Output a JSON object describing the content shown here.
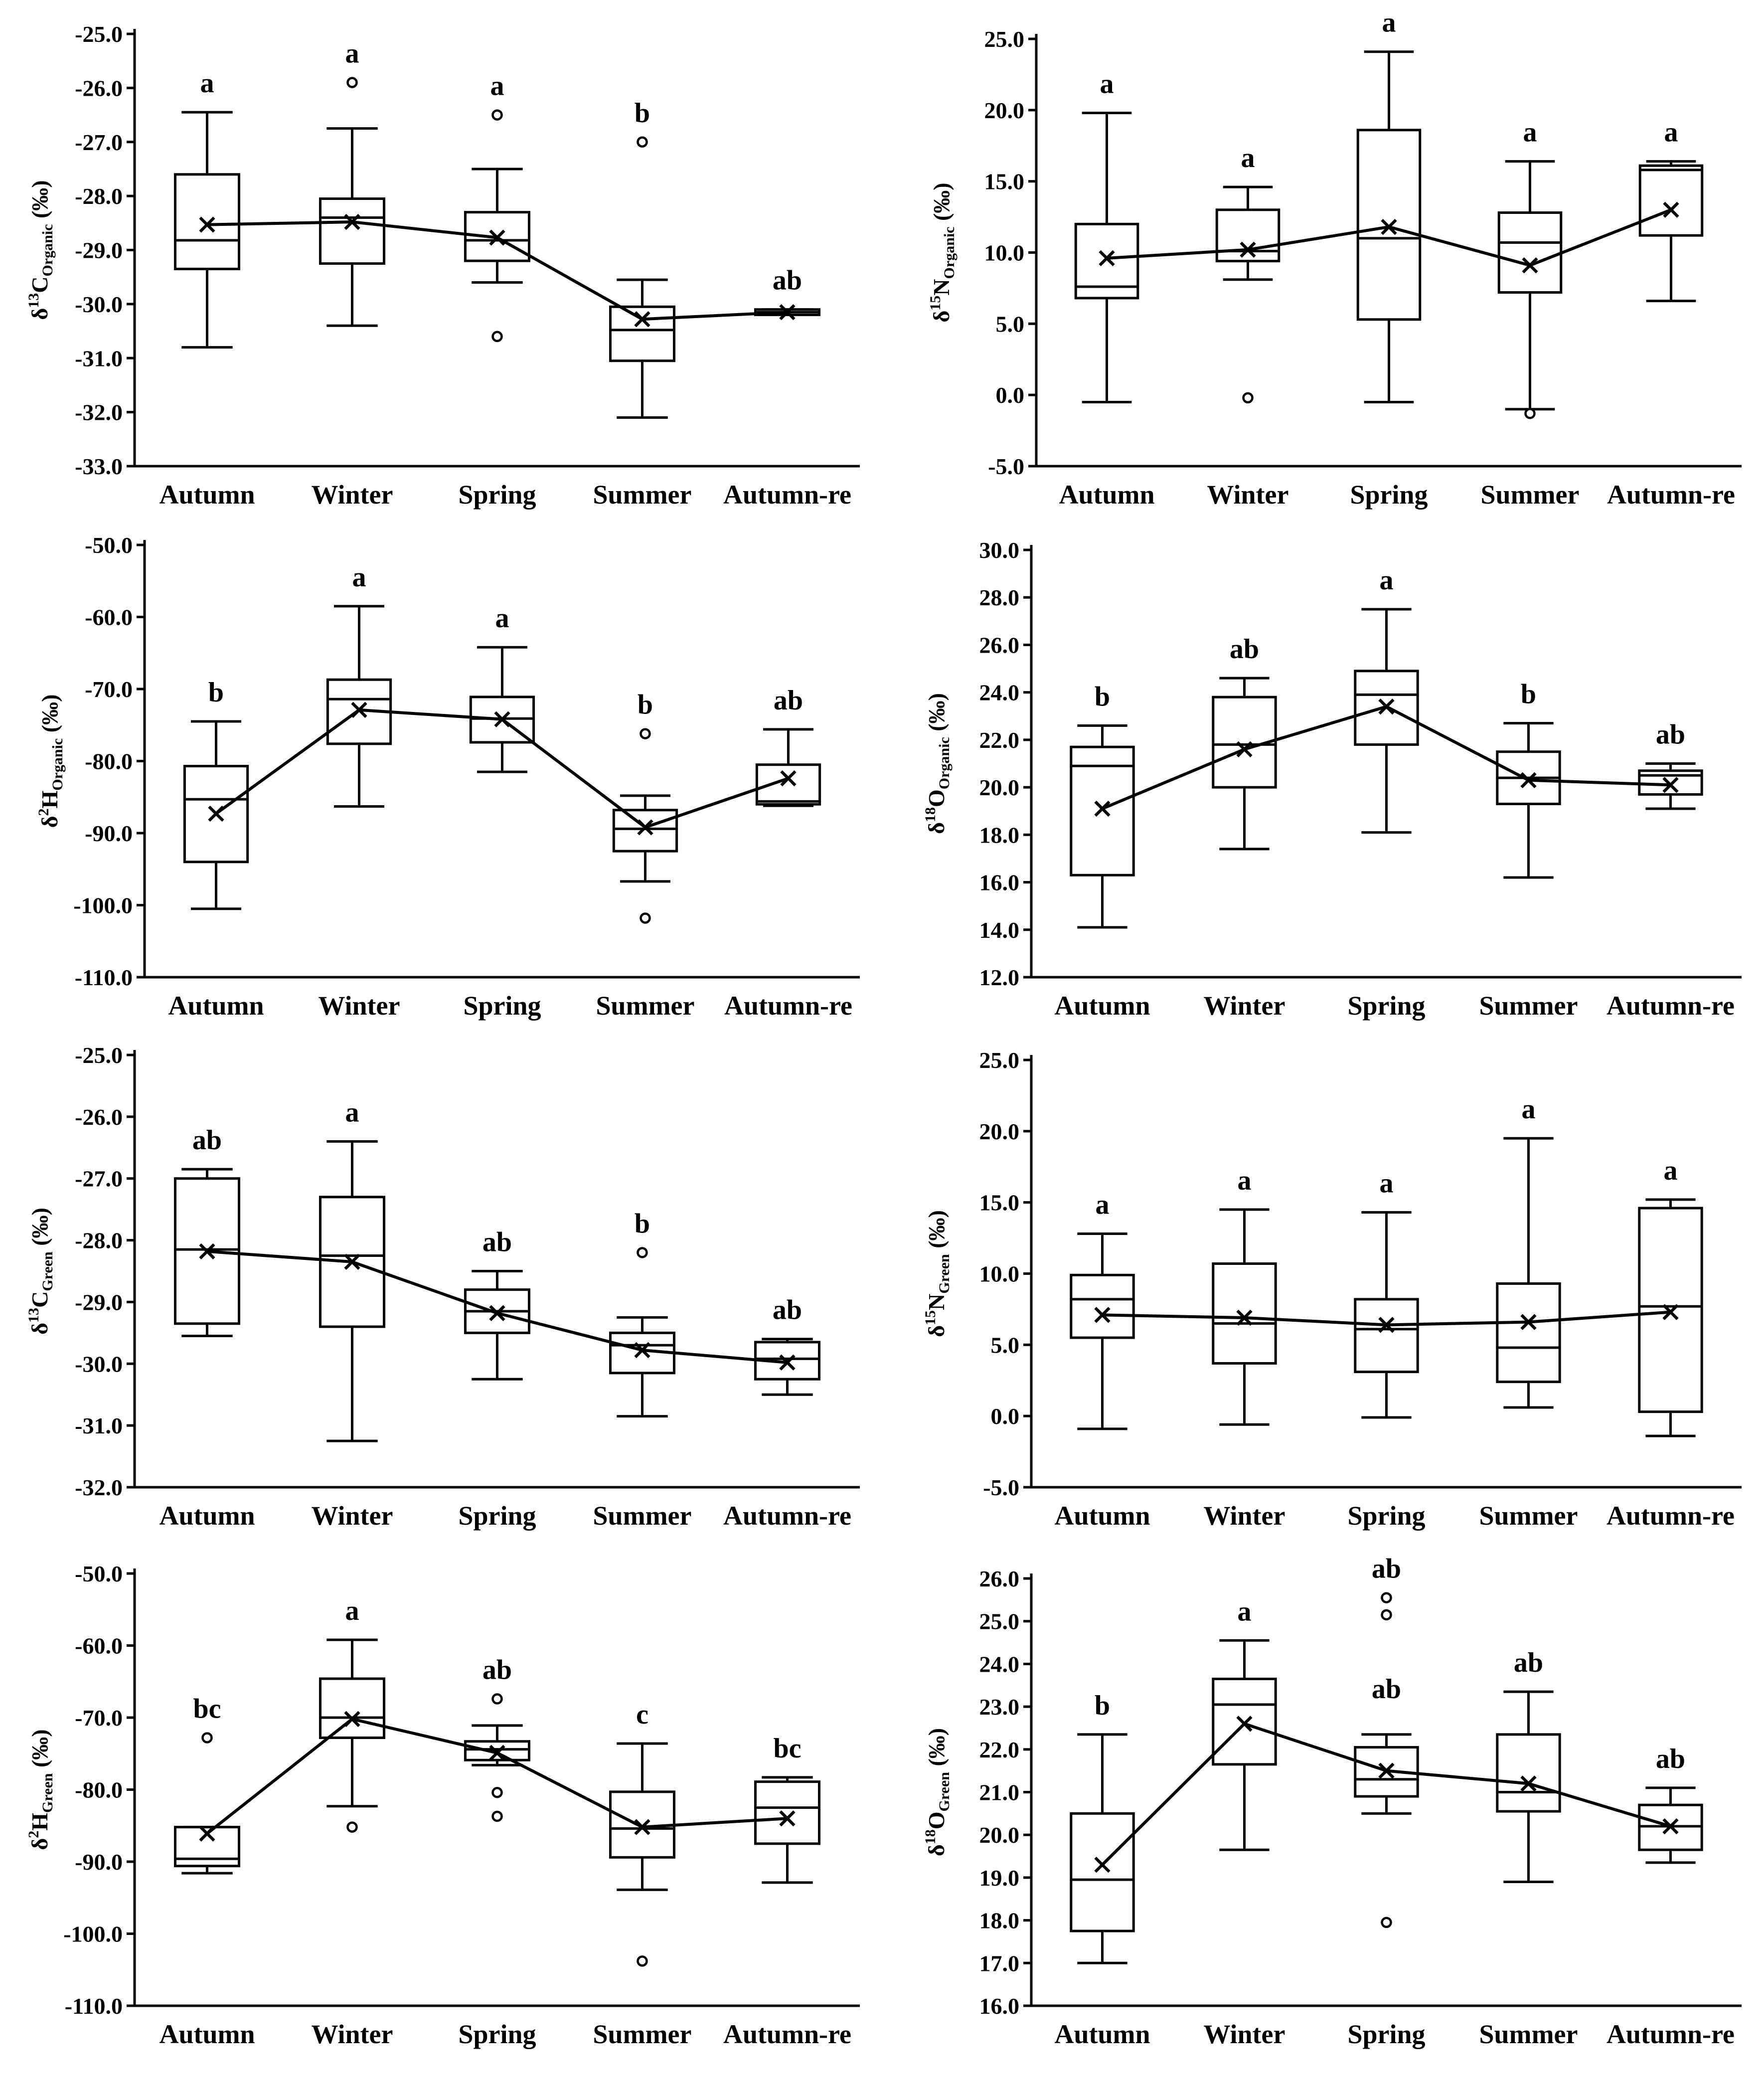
{
  "chart_data": [
    {
      "type": "box",
      "ylabel": {
        "prefix": "δ",
        "sup": "13",
        "element": "C",
        "sub": "Organic",
        "unit": " (‰)"
      },
      "categories": [
        "Autumn",
        "Winter",
        "Spring",
        "Summer",
        "Autumn-re"
      ],
      "ylim": [
        -33.0,
        -25.0
      ],
      "yticks": [
        "-33.0",
        "-32.0",
        "-31.0",
        "-30.0",
        "-29.0",
        "-28.0",
        "-27.0",
        "-26.0",
        "-25.0"
      ],
      "ytick_values": [
        -33,
        -32,
        -31,
        -30,
        -29,
        -28,
        -27,
        -26,
        -25
      ],
      "boxes": [
        {
          "min": -30.8,
          "q1": -29.35,
          "median": -28.82,
          "q3": -27.6,
          "max": -26.45,
          "mean": -28.53,
          "outliers": []
        },
        {
          "min": -30.4,
          "q1": -29.25,
          "median": -28.4,
          "q3": -28.05,
          "max": -26.75,
          "mean": -28.48,
          "outliers": [
            -25.9
          ]
        },
        {
          "min": -29.6,
          "q1": -29.2,
          "median": -28.82,
          "q3": -28.3,
          "max": -27.5,
          "mean": -28.77,
          "outliers": [
            -26.5,
            -30.6
          ]
        },
        {
          "min": -32.1,
          "q1": -31.05,
          "median": -30.48,
          "q3": -30.05,
          "max": -29.55,
          "mean": -30.28,
          "outliers": [
            -27.0
          ]
        },
        {
          "min": -30.2,
          "q1": -30.2,
          "median": -30.15,
          "q3": -30.1,
          "max": -30.1,
          "mean": -30.15,
          "outliers": []
        }
      ],
      "significance": [
        "a",
        "a",
        "a",
        "b",
        "ab"
      ]
    },
    {
      "type": "box",
      "ylabel": {
        "prefix": "δ",
        "sup": "15",
        "element": "N",
        "sub": "Organic",
        "unit": " (‰)"
      },
      "categories": [
        "Autumn",
        "Winter",
        "Spring",
        "Summer",
        "Autumn-re"
      ],
      "ylim": [
        -5.0,
        25.0
      ],
      "yticks": [
        "-5.0",
        "0.0",
        "5.0",
        "10.0",
        "15.0",
        "20.0",
        "25.0"
      ],
      "ytick_values": [
        -5,
        0,
        5,
        10,
        15,
        20,
        25
      ],
      "boxes": [
        {
          "min": -0.5,
          "q1": 6.8,
          "median": 7.6,
          "q3": 12.0,
          "max": 19.8,
          "mean": 9.6,
          "outliers": []
        },
        {
          "min": 8.1,
          "q1": 9.4,
          "median": 10.1,
          "q3": 13.0,
          "max": 14.6,
          "mean": 10.2,
          "outliers": [
            -0.2
          ]
        },
        {
          "min": -0.5,
          "q1": 5.3,
          "median": 11.0,
          "q3": 18.6,
          "max": 24.1,
          "mean": 11.8,
          "outliers": []
        },
        {
          "min": -1.0,
          "q1": 7.2,
          "median": 10.7,
          "q3": 12.8,
          "max": 16.4,
          "mean": 9.1,
          "outliers": [
            -1.3
          ]
        },
        {
          "min": 6.6,
          "q1": 11.2,
          "median": 15.8,
          "q3": 16.1,
          "max": 16.4,
          "mean": 13.0,
          "outliers": []
        }
      ],
      "significance": [
        "a",
        "a",
        "a",
        "a",
        "a"
      ]
    },
    {
      "type": "box",
      "ylabel": {
        "prefix": "δ",
        "sup": "2",
        "element": "H",
        "sub": "Organic",
        "unit": " (‰)"
      },
      "categories": [
        "Autumn",
        "Winter",
        "Spring",
        "Summer",
        "Autumn-re"
      ],
      "ylim": [
        -110.0,
        -50.0
      ],
      "yticks": [
        "-110.0",
        "-100.0",
        "-90.0",
        "-80.0",
        "-70.0",
        "-60.0",
        "-50.0"
      ],
      "ytick_values": [
        -110,
        -100,
        -90,
        -80,
        -70,
        -60,
        -50
      ],
      "boxes": [
        {
          "min": -100.5,
          "q1": -94.0,
          "median": -85.3,
          "q3": -80.7,
          "max": -74.5,
          "mean": -87.3,
          "outliers": []
        },
        {
          "min": -86.3,
          "q1": -77.6,
          "median": -71.4,
          "q3": -68.7,
          "max": -58.5,
          "mean": -72.9,
          "outliers": []
        },
        {
          "min": -81.5,
          "q1": -77.4,
          "median": -74.1,
          "q3": -71.1,
          "max": -64.2,
          "mean": -74.2,
          "outliers": []
        },
        {
          "min": -96.7,
          "q1": -92.5,
          "median": -89.4,
          "q3": -86.8,
          "max": -84.8,
          "mean": -89.2,
          "outliers": [
            -76.2,
            -101.8
          ]
        },
        {
          "min": -86.2,
          "q1": -86.0,
          "median": -85.6,
          "q3": -80.5,
          "max": -75.6,
          "mean": -82.4,
          "outliers": []
        }
      ],
      "significance": [
        "b",
        "a",
        "a",
        "b",
        "ab"
      ]
    },
    {
      "type": "box",
      "ylabel": {
        "prefix": "δ",
        "sup": "18",
        "element": "O",
        "sub": "Organic",
        "unit": " (‰)"
      },
      "categories": [
        "Autumn",
        "Winter",
        "Spring",
        "Summer",
        "Autumn-re"
      ],
      "ylim": [
        12.0,
        30.0
      ],
      "yticks": [
        "12.0",
        "14.0",
        "16.0",
        "18.0",
        "20.0",
        "22.0",
        "24.0",
        "26.0",
        "28.0",
        "30.0"
      ],
      "ytick_values": [
        12,
        14,
        16,
        18,
        20,
        22,
        24,
        26,
        28,
        30
      ],
      "boxes": [
        {
          "min": 14.1,
          "q1": 16.3,
          "median": 20.9,
          "q3": 21.7,
          "max": 22.6,
          "mean": 19.1,
          "outliers": []
        },
        {
          "min": 17.4,
          "q1": 20.0,
          "median": 21.8,
          "q3": 23.8,
          "max": 24.6,
          "mean": 21.6,
          "outliers": []
        },
        {
          "min": 18.1,
          "q1": 21.8,
          "median": 23.9,
          "q3": 24.9,
          "max": 27.5,
          "mean": 23.4,
          "outliers": []
        },
        {
          "min": 16.2,
          "q1": 19.3,
          "median": 20.4,
          "q3": 21.5,
          "max": 22.7,
          "mean": 20.3,
          "outliers": []
        },
        {
          "min": 19.1,
          "q1": 19.7,
          "median": 20.5,
          "q3": 20.7,
          "max": 21.0,
          "mean": 20.1,
          "outliers": []
        }
      ],
      "significance": [
        "b",
        "ab",
        "a",
        "b",
        "ab"
      ]
    },
    {
      "type": "box",
      "ylabel": {
        "prefix": "δ",
        "sup": "13",
        "element": "C",
        "sub": "Green",
        "unit": " (‰)"
      },
      "categories": [
        "Autumn",
        "Winter",
        "Spring",
        "Summer",
        "Autumn-re"
      ],
      "ylim": [
        -32.0,
        -25.0
      ],
      "yticks": [
        "-32.0",
        "-31.0",
        "-30.0",
        "-29.0",
        "-28.0",
        "-27.0",
        "-26.0",
        "-25.0"
      ],
      "ytick_values": [
        -32,
        -31,
        -30,
        -29,
        -28,
        -27,
        -26,
        -25
      ],
      "boxes": [
        {
          "min": -29.55,
          "q1": -29.35,
          "median": -28.15,
          "q3": -27.0,
          "max": -26.85,
          "mean": -28.18,
          "outliers": []
        },
        {
          "min": -31.25,
          "q1": -29.4,
          "median": -28.25,
          "q3": -27.3,
          "max": -26.4,
          "mean": -28.35,
          "outliers": []
        },
        {
          "min": -30.25,
          "q1": -29.5,
          "median": -29.15,
          "q3": -28.8,
          "max": -28.5,
          "mean": -29.18,
          "outliers": []
        },
        {
          "min": -30.85,
          "q1": -30.15,
          "median": -29.7,
          "q3": -29.5,
          "max": -29.25,
          "mean": -29.78,
          "outliers": [
            -28.2
          ]
        },
        {
          "min": -30.5,
          "q1": -30.25,
          "median": -29.92,
          "q3": -29.65,
          "max": -29.6,
          "mean": -29.98,
          "outliers": []
        }
      ],
      "significance": [
        "ab",
        "a",
        "ab",
        "b",
        "ab"
      ]
    },
    {
      "type": "box",
      "ylabel": {
        "prefix": "δ",
        "sup": "15",
        "element": "N",
        "sub": "Green",
        "unit": " (‰)"
      },
      "categories": [
        "Autumn",
        "Winter",
        "Spring",
        "Summer",
        "Autumn-re"
      ],
      "ylim": [
        -5.0,
        25.0
      ],
      "yticks": [
        "-5.0",
        "0.0",
        "5.0",
        "10.0",
        "15.0",
        "20.0",
        "25.0"
      ],
      "ytick_values": [
        -5,
        0,
        5,
        10,
        15,
        20,
        25
      ],
      "boxes": [
        {
          "min": -0.9,
          "q1": 5.5,
          "median": 8.2,
          "q3": 9.9,
          "max": 12.8,
          "mean": 7.1,
          "outliers": []
        },
        {
          "min": -0.6,
          "q1": 3.7,
          "median": 6.5,
          "q3": 10.7,
          "max": 14.5,
          "mean": 6.9,
          "outliers": []
        },
        {
          "min": -0.1,
          "q1": 3.1,
          "median": 6.1,
          "q3": 8.2,
          "max": 14.3,
          "mean": 6.4,
          "outliers": []
        },
        {
          "min": 0.6,
          "q1": 2.4,
          "median": 4.8,
          "q3": 9.3,
          "max": 19.5,
          "mean": 6.6,
          "outliers": []
        },
        {
          "min": -1.4,
          "q1": 0.3,
          "median": 7.7,
          "q3": 14.6,
          "max": 15.2,
          "mean": 7.3,
          "outliers": []
        }
      ],
      "significance": [
        "a",
        "a",
        "a",
        "a",
        "a"
      ]
    },
    {
      "type": "box",
      "ylabel": {
        "prefix": "δ",
        "sup": "2",
        "element": "H",
        "sub": "Green",
        "unit": " (‰)"
      },
      "categories": [
        "Autumn",
        "Winter",
        "Spring",
        "Summer",
        "Autumn-re"
      ],
      "ylim": [
        -110.0,
        -50.0
      ],
      "yticks": [
        "-110.0",
        "-100.0",
        "-90.0",
        "-80.0",
        "-70.0",
        "-60.0",
        "-50.0"
      ],
      "ytick_values": [
        -110,
        -100,
        -90,
        -80,
        -70,
        -60,
        -50
      ],
      "boxes": [
        {
          "min": -91.6,
          "q1": -90.6,
          "median": -89.6,
          "q3": -85.2,
          "max": -85.2,
          "mean": -86.1,
          "outliers": [
            -72.8
          ]
        },
        {
          "min": -82.3,
          "q1": -72.8,
          "median": -70.0,
          "q3": -64.6,
          "max": -59.2,
          "mean": -70.2,
          "outliers": [
            -85.2
          ]
        },
        {
          "min": -76.6,
          "q1": -75.9,
          "median": -74.4,
          "q3": -73.3,
          "max": -71.1,
          "mean": -74.9,
          "outliers": [
            -67.4,
            -80.4,
            -83.7
          ]
        },
        {
          "min": -93.9,
          "q1": -89.4,
          "median": -85.4,
          "q3": -80.3,
          "max": -73.6,
          "mean": -85.2,
          "outliers": [
            -103.8
          ]
        },
        {
          "min": -92.9,
          "q1": -87.5,
          "median": -82.5,
          "q3": -78.9,
          "max": -78.3,
          "mean": -84.0,
          "outliers": []
        }
      ],
      "significance": [
        "bc",
        "a",
        "ab",
        "c",
        "bc"
      ]
    },
    {
      "type": "box",
      "ylabel": {
        "prefix": "δ",
        "sup": "18",
        "element": "O",
        "sub": "Green",
        "unit": " (‰)"
      },
      "categories": [
        "Autumn",
        "Winter",
        "Spring",
        "Summer",
        "Autumn-re"
      ],
      "ylim": [
        16.0,
        26.0
      ],
      "yticks": [
        "16.0",
        "17.0",
        "18.0",
        "19.0",
        "20.0",
        "21.0",
        "22.0",
        "23.0",
        "24.0",
        "25.0",
        "26.0"
      ],
      "ytick_values": [
        16,
        17,
        18,
        19,
        20,
        21,
        22,
        23,
        24,
        25,
        26
      ],
      "boxes": [
        {
          "min": 17.0,
          "q1": 17.75,
          "median": 18.95,
          "q3": 20.5,
          "max": 22.35,
          "mean": 19.3,
          "outliers": []
        },
        {
          "min": 19.65,
          "q1": 21.65,
          "median": 23.05,
          "q3": 23.65,
          "max": 24.55,
          "mean": 22.6,
          "outliers": []
        },
        {
          "min": 20.5,
          "q1": 20.9,
          "median": 21.3,
          "q3": 22.05,
          "max": 22.35,
          "mean": 21.5,
          "outliers": [
            25.55,
            25.15,
            17.95
          ]
        },
        {
          "min": 18.9,
          "q1": 20.55,
          "median": 21.0,
          "q3": 22.35,
          "max": 23.35,
          "mean": 21.2,
          "outliers": []
        },
        {
          "min": 19.35,
          "q1": 19.65,
          "median": 20.2,
          "q3": 20.7,
          "max": 21.1,
          "mean": 20.2,
          "outliers": []
        }
      ],
      "significance": [
        "b",
        "a",
        "ab",
        "ab",
        "ab"
      ],
      "significance_extra": [
        {
          "category": 2,
          "label": "ab",
          "at": 22.85
        }
      ]
    }
  ]
}
